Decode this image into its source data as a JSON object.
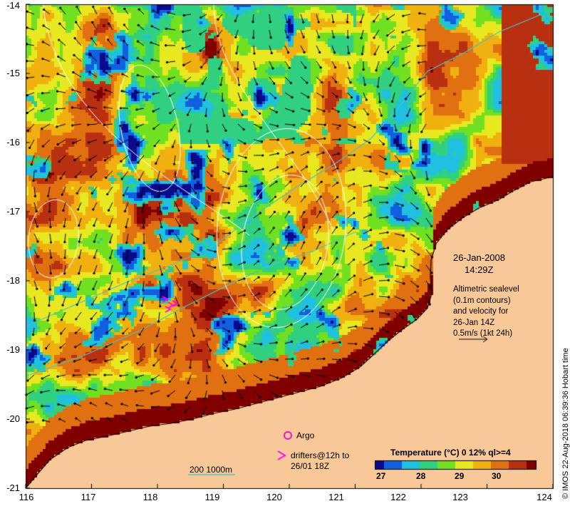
{
  "map": {
    "lat_ticks": [
      "-14",
      "-15",
      "-16",
      "-17",
      "-18",
      "-19",
      "-20",
      "-21"
    ],
    "lon_ticks": [
      "116",
      "117",
      "118",
      "119",
      "120",
      "121",
      "122",
      "123",
      "124"
    ],
    "extent": {
      "lon": [
        116,
        124
      ],
      "lat": [
        -21,
        -14
      ]
    }
  },
  "annotation": {
    "date": "26-Jan-2008",
    "time": "14:29Z",
    "line1": "Altimetric sealevel",
    "line2": "(0.1m contours)",
    "line3": "and velocity for",
    "line4": "26-Jan 14Z",
    "line5": "0.5m/s (1kt 24h)"
  },
  "legend": {
    "argo_label": "Argo",
    "drifters_label1": "drifters@12h to",
    "drifters_label2": "26/01 18Z",
    "isobath_label": "200  1000m",
    "argo_color": "#e000e0",
    "drifter_color": "#ff00ff",
    "isobath_color": "#40c8c8"
  },
  "colorbar": {
    "title": "Temperature (°C) 0 12% ql>=4",
    "ticks": [
      "27",
      "28",
      "29",
      "30"
    ],
    "range": [
      26.6,
      31.1
    ],
    "colors": [
      "#0a0a8a",
      "#1060e0",
      "#20c0e0",
      "#30d080",
      "#70e020",
      "#e8e820",
      "#f0b010",
      "#e07010",
      "#b83010",
      "#800000"
    ]
  },
  "credit": "© IMOS 22-Aug-2018 06:39:36 Hobart time",
  "colors": {
    "land": "#f8c898",
    "coast_warm": "#8b0000"
  }
}
